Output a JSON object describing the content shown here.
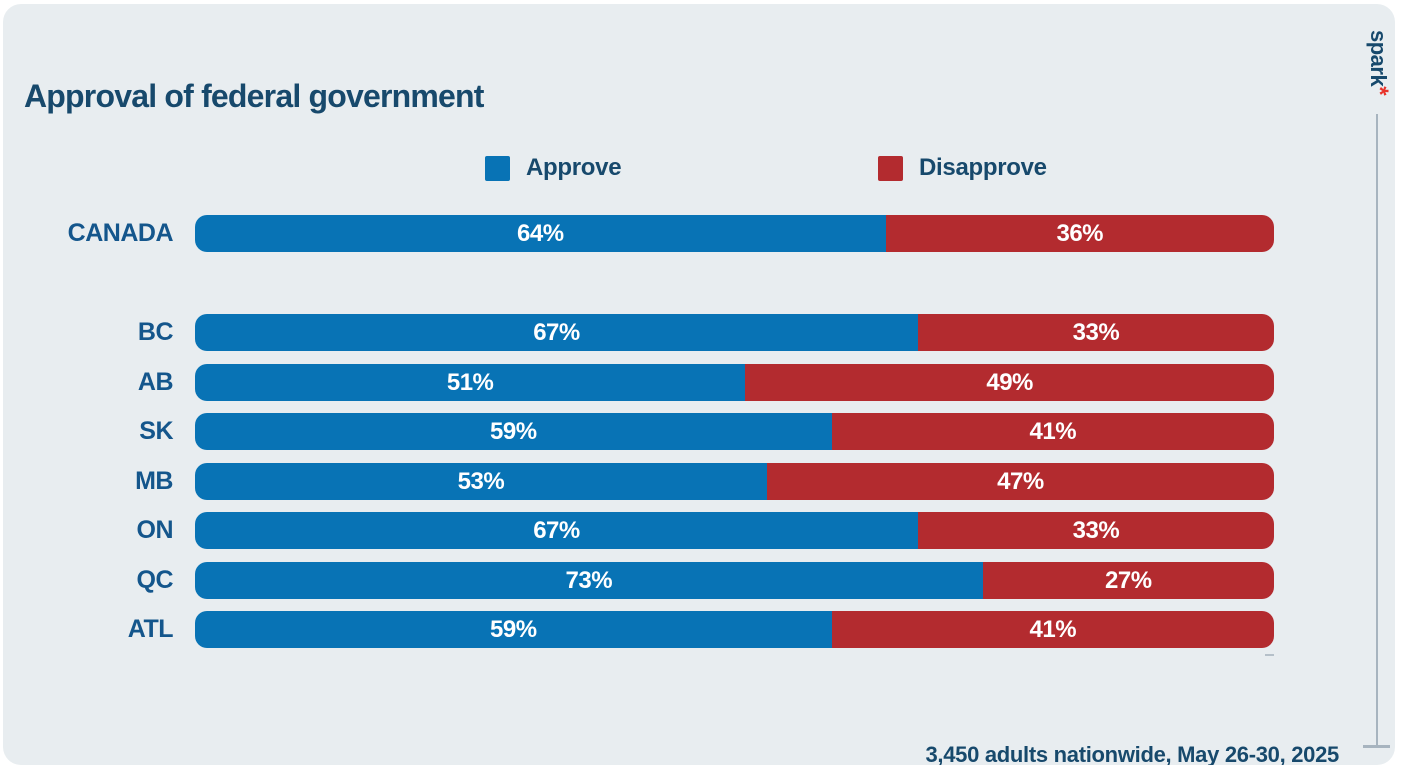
{
  "header": {
    "title": "Approval of federal government"
  },
  "legend": {
    "approve_label": "Approve",
    "disapprove_label": "Disapprove"
  },
  "brand": {
    "logo_text": "spark",
    "logo_mark": "*"
  },
  "footer": {
    "source_note": "3,450 adults nationwide, May 26-30, 2025"
  },
  "colors": {
    "approve": "#0873b5",
    "disapprove": "#b32b2f",
    "navy": "#17496c",
    "label": "#14568c",
    "card_bg": "#e8edf0",
    "rule": "#a7b4bf"
  },
  "chart_data": {
    "type": "bar",
    "orientation": "horizontal",
    "stacked": true,
    "title": "Approval of federal government",
    "categories": [
      "CANADA",
      "BC",
      "AB",
      "SK",
      "MB",
      "ON",
      "QC",
      "ATL"
    ],
    "series": [
      {
        "name": "Approve",
        "color": "#0873b5",
        "values": [
          64,
          67,
          51,
          59,
          53,
          67,
          73,
          59
        ]
      },
      {
        "name": "Disapprove",
        "color": "#b32b2f",
        "values": [
          36,
          33,
          49,
          41,
          47,
          33,
          27,
          41
        ]
      }
    ],
    "value_suffix": "%",
    "xlim": [
      0,
      100
    ],
    "legend_position": "top",
    "data_labels": "white percentage labels centered in each segment",
    "grid": false,
    "note": "first row CANADA is a national summary separated by a gap from the province rows"
  }
}
